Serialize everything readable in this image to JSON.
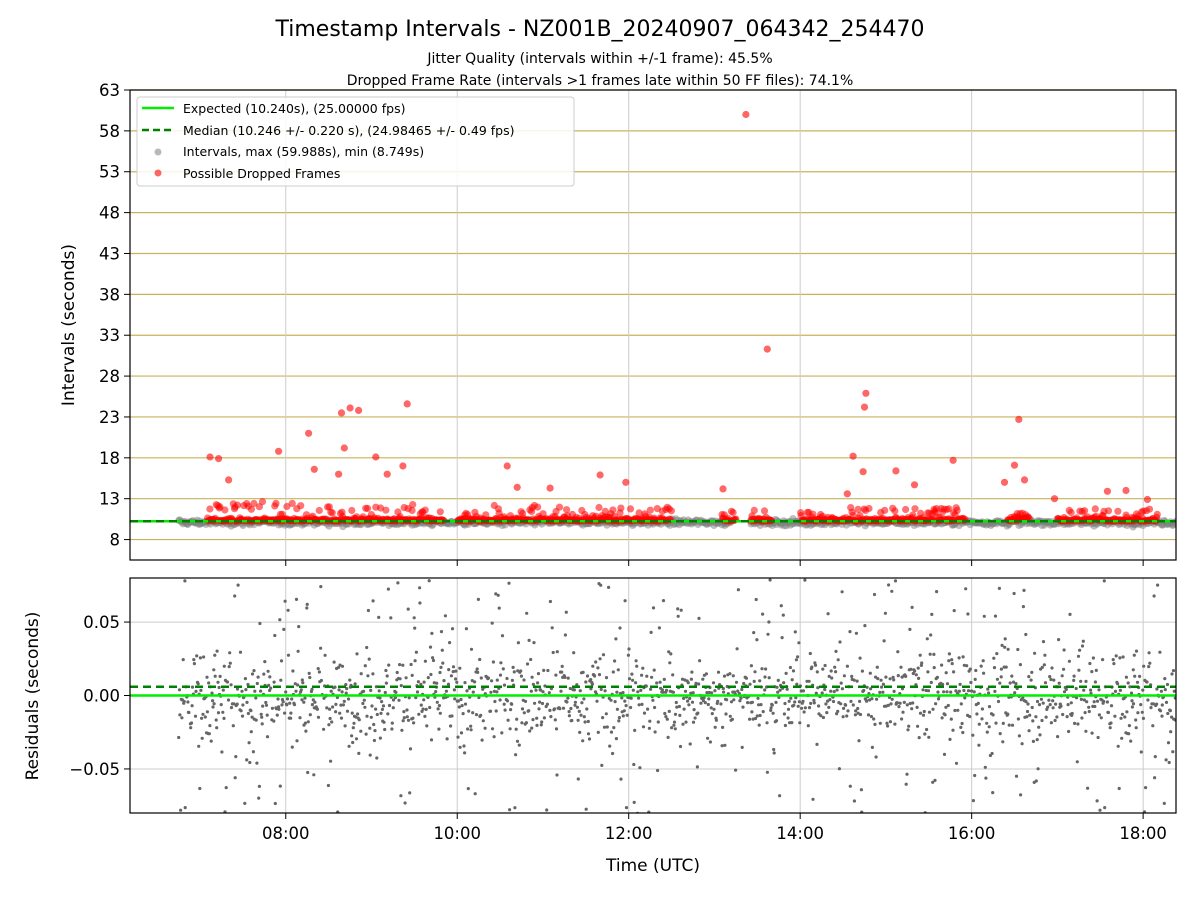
{
  "figure": {
    "title": "Timestamp Intervals - NZ001B_20240907_064342_254470",
    "subtitle_1": "Jitter Quality (intervals within +/-1 frame): 45.5%",
    "subtitle_2": "Dropped Frame Rate (intervals >1 frames late within 50 FF files): 74.1%"
  },
  "colors": {
    "expected": "#00ee00",
    "median": "#008000",
    "intervals": "#808080",
    "dropped": "#ff0000",
    "hgrid": "#c8b35a",
    "vgrid": "#cccccc",
    "residuals": "#666666"
  },
  "chart_data": [
    {
      "type": "scatter",
      "panel": "top",
      "xlabel": "",
      "ylabel": "Intervals (seconds)",
      "xlim": [
        "06:11",
        "18:23"
      ],
      "ylim": [
        5.5,
        63
      ],
      "yticks": [
        8,
        13,
        18,
        23,
        28,
        33,
        38,
        43,
        48,
        53,
        58,
        63
      ],
      "xticks": [
        "08:00",
        "10:00",
        "12:00",
        "14:00",
        "16:00",
        "18:00"
      ],
      "grid": true,
      "legend_placement": "top-left",
      "lines": [
        {
          "name": "Expected (10.240s), (25.00000 fps)",
          "y": 10.24,
          "style": "solid"
        },
        {
          "name": "Median (10.246 +/- 0.220 s), (24.98465 +/- 0.49 fps)",
          "y": 10.246,
          "style": "dashed"
        }
      ],
      "series": [
        {
          "name": "Intervals, max (59.988s), min (8.749s)",
          "band_start": "06:45",
          "band_end": "18:23",
          "min": 8.749,
          "max": 59.988,
          "marker": "circle"
        },
        {
          "name": "Possible Dropped Frames",
          "marker": "circle",
          "outliers": [
            [
              "07:07",
              18.1
            ],
            [
              "07:13",
              17.9
            ],
            [
              "07:20",
              15.3
            ],
            [
              "07:55",
              18.8
            ],
            [
              "08:16",
              21.0
            ],
            [
              "08:20",
              16.6
            ],
            [
              "08:37",
              16.0
            ],
            [
              "08:39",
              23.5
            ],
            [
              "08:41",
              19.2
            ],
            [
              "08:45",
              24.1
            ],
            [
              "08:51",
              23.8
            ],
            [
              "09:03",
              18.1
            ],
            [
              "09:11",
              16.0
            ],
            [
              "09:22",
              17.0
            ],
            [
              "09:25",
              24.6
            ],
            [
              "10:42",
              14.4
            ],
            [
              "10:35",
              17.0
            ],
            [
              "11:05",
              14.3
            ],
            [
              "11:40",
              15.9
            ],
            [
              "11:58",
              15.0
            ],
            [
              "13:06",
              14.2
            ],
            [
              "13:22",
              60.0
            ],
            [
              "13:37",
              31.3
            ],
            [
              "14:33",
              13.6
            ],
            [
              "14:37",
              18.2
            ],
            [
              "14:44",
              16.3
            ],
            [
              "14:45",
              24.2
            ],
            [
              "14:46",
              25.9
            ],
            [
              "15:07",
              16.4
            ],
            [
              "15:20",
              14.7
            ],
            [
              "15:47",
              17.7
            ],
            [
              "16:23",
              15.0
            ],
            [
              "16:30",
              17.1
            ],
            [
              "16:33",
              22.7
            ],
            [
              "16:37",
              15.3
            ],
            [
              "16:58",
              13.0
            ],
            [
              "17:35",
              13.9
            ],
            [
              "17:48",
              14.0
            ],
            [
              "18:03",
              12.9
            ]
          ]
        }
      ]
    },
    {
      "type": "scatter",
      "panel": "bottom",
      "xlabel": "Time (UTC)",
      "ylabel": "Residuals (seconds)",
      "xlim": [
        "06:11",
        "18:23"
      ],
      "ylim": [
        -0.08,
        0.08
      ],
      "yticks": [
        "0.05",
        "0.00",
        "−0.05"
      ],
      "ytick_values": [
        0.05,
        0,
        -0.05
      ],
      "xticks": [
        "08:00",
        "10:00",
        "12:00",
        "14:00",
        "16:00",
        "18:00"
      ],
      "grid": true,
      "lines": [
        {
          "y": 0.0,
          "style": "solid"
        },
        {
          "y": 0.006,
          "style": "dashed"
        }
      ],
      "residual_spread": 0.045
    }
  ]
}
